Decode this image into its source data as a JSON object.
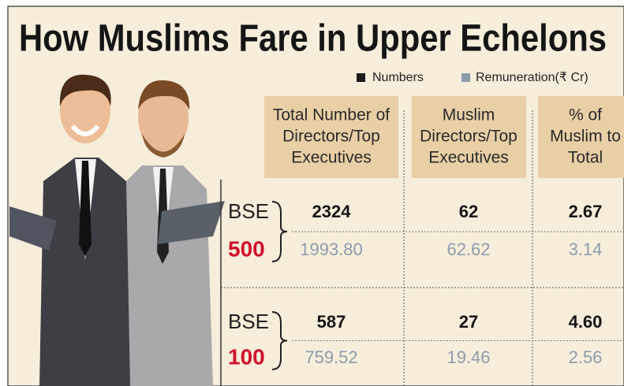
{
  "title": "How Muslims Fare in Upper Echelons",
  "legend": [
    "Numbers",
    "Remuneration(₹ Cr)"
  ],
  "table": {
    "headers": [
      [
        "Total Number of",
        "Directors/Top",
        "Executives"
      ],
      [
        "Muslim",
        "Directors/Top",
        "Executives"
      ],
      [
        "% of",
        "Muslim to",
        "Total"
      ]
    ],
    "groups": [
      {
        "exchange": "BSE",
        "index": "500",
        "numbers": [
          "2324",
          "62",
          "2.67"
        ],
        "remuneration": [
          "1993.80",
          "62.62",
          "3.14"
        ]
      },
      {
        "exchange": "BSE",
        "index": "100",
        "numbers": [
          "587",
          "27",
          "4.60"
        ],
        "remuneration": [
          "759.52",
          "19.46",
          "2.56"
        ]
      }
    ]
  }
}
